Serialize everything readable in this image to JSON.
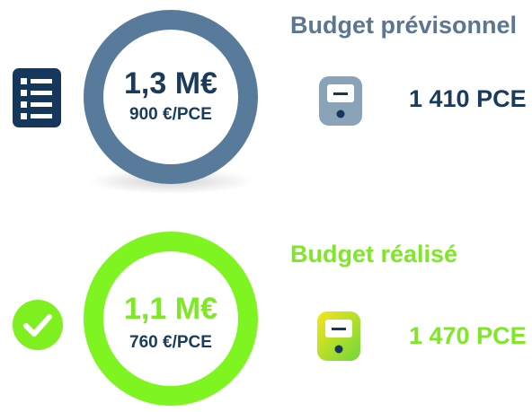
{
  "sections": [
    {
      "title": "Budget prévisonnel",
      "amount": "1,3 M€",
      "unit_cost": "900 €/PCE",
      "count": "1 410 PCE"
    },
    {
      "title": "Budget réalisé",
      "amount": "1,1 M€",
      "unit_cost": "760 €/PCE",
      "count": "1 470 PCE"
    }
  ]
}
